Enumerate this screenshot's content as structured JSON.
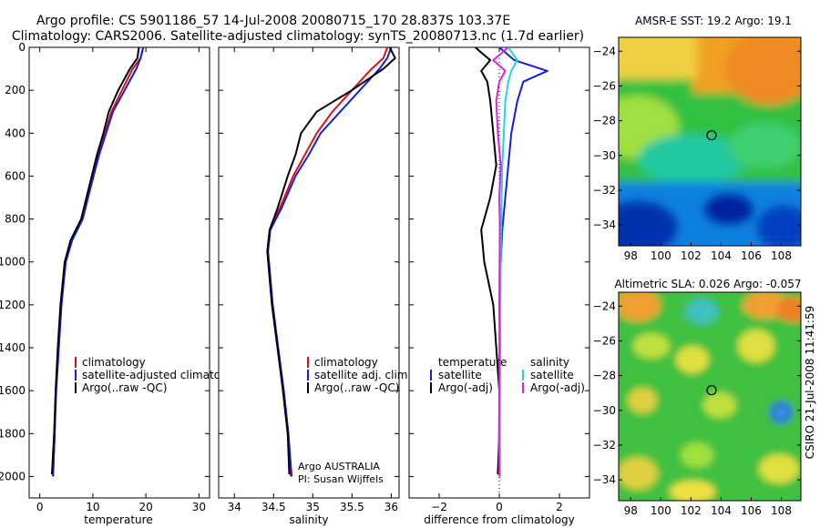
{
  "header": {
    "line1": "Argo profile: CS 5901186_57 14-Jul-2008 20080715_170 28.837S 103.37E",
    "line2": "Climatology: CARS2006. Satellite-adjusted climatology: synTS_20080713.nc (1.7d earlier)"
  },
  "side_note": "CSIRO 21-Jul-2008 11:41:59",
  "chart_data": [
    {
      "id": "temperature",
      "type": "line",
      "xlabel": "temperature",
      "xlim": [
        -2,
        32
      ],
      "xticks": [
        0,
        10,
        20,
        30
      ],
      "ylim": [
        0,
        2100
      ],
      "yticks": [
        0,
        200,
        400,
        600,
        800,
        1000,
        1200,
        1400,
        1600,
        1800,
        2000
      ],
      "y_reversed": true,
      "legend": [
        "climatology",
        "satellite-adjusted climatology",
        "Argo(..raw -QC)"
      ],
      "series": [
        {
          "name": "climatology",
          "color": "#e01010",
          "x": [
            19.5,
            19.0,
            17.5,
            15.5,
            13.5,
            12.3,
            11.0,
            9.5,
            8.0,
            6.0,
            4.8,
            4.0,
            3.5,
            3.0,
            2.8,
            2.5
          ],
          "y": [
            0,
            50,
            100,
            200,
            300,
            400,
            500,
            650,
            800,
            900,
            1000,
            1200,
            1400,
            1600,
            1800,
            2000
          ]
        },
        {
          "name": "satellite-adjusted climatology",
          "color": "#1020e0",
          "x": [
            19.5,
            19.0,
            18.2,
            16.0,
            13.8,
            12.5,
            11.2,
            9.6,
            8.1,
            6.1,
            4.9,
            4.1,
            3.6,
            3.1,
            2.8,
            2.5
          ],
          "y": [
            0,
            50,
            100,
            200,
            300,
            400,
            500,
            650,
            800,
            900,
            1000,
            1200,
            1400,
            1600,
            1800,
            2000
          ]
        },
        {
          "name": "Argo(..raw -QC)",
          "color": "#000000",
          "x": [
            18.7,
            18.4,
            17.0,
            14.8,
            13.0,
            12.0,
            10.8,
            9.3,
            7.8,
            5.8,
            4.7,
            3.9,
            3.4,
            3.0,
            2.7,
            2.3
          ],
          "y": [
            0,
            50,
            100,
            200,
            300,
            400,
            500,
            650,
            800,
            900,
            1000,
            1200,
            1400,
            1600,
            1800,
            1990
          ]
        }
      ]
    },
    {
      "id": "salinity",
      "type": "line",
      "xlabel": "salinity",
      "xlim": [
        33.8,
        36.1
      ],
      "xticks": [
        34,
        34.5,
        35,
        35.5,
        36
      ],
      "ylim": [
        0,
        2100
      ],
      "y_reversed": true,
      "legend": [
        "climatology",
        "satellite adj. clim.",
        "Argo(..raw -QC)"
      ],
      "annotation": [
        "Argo AUSTRALIA",
        "PI: Susan Wijffels"
      ],
      "series": [
        {
          "name": "climatology",
          "color": "#e01010",
          "x": [
            35.95,
            35.9,
            35.75,
            35.5,
            35.25,
            35.05,
            34.9,
            34.75,
            34.58,
            34.45,
            34.42,
            34.48,
            34.55,
            34.62,
            34.68,
            34.72
          ],
          "y": [
            0,
            50,
            100,
            200,
            300,
            400,
            500,
            600,
            750,
            850,
            950,
            1200,
            1400,
            1600,
            1800,
            2000
          ]
        },
        {
          "name": "satellite adj. clim.",
          "color": "#1020e0",
          "x": [
            36.0,
            35.95,
            35.85,
            35.6,
            35.35,
            35.1,
            34.95,
            34.78,
            34.6,
            34.46,
            34.43,
            34.49,
            34.56,
            34.63,
            34.69,
            34.73
          ],
          "y": [
            0,
            50,
            100,
            200,
            300,
            400,
            500,
            600,
            750,
            850,
            950,
            1200,
            1400,
            1600,
            1800,
            2000
          ]
        },
        {
          "name": "Argo(..raw -QC)",
          "color": "#000000",
          "x": [
            35.98,
            36.05,
            35.9,
            35.5,
            35.05,
            34.85,
            34.78,
            34.68,
            34.55,
            34.45,
            34.42,
            34.48,
            34.55,
            34.62,
            34.68,
            34.7
          ],
          "y": [
            0,
            50,
            100,
            200,
            300,
            400,
            500,
            600,
            750,
            850,
            950,
            1200,
            1400,
            1600,
            1800,
            1990
          ]
        }
      ]
    },
    {
      "id": "difference",
      "type": "line",
      "xlabel": "difference from climatology",
      "xlim": [
        -3,
        3
      ],
      "xticks": [
        -2,
        0,
        2
      ],
      "ylim": [
        0,
        2100
      ],
      "y_reversed": true,
      "legend_temperature": {
        "title": "temperature",
        "entries": [
          "satellite",
          "Argo(-adj)"
        ]
      },
      "legend_salinity": {
        "title": "salinity",
        "entries": [
          "satellite",
          "Argo(-adj)"
        ]
      },
      "series": [
        {
          "name": "temperature satellite",
          "color": "#1020e0",
          "x": [
            0.0,
            0.5,
            1.6,
            0.8,
            0.6,
            0.4,
            0.3,
            0.2,
            0.1,
            0.05,
            0.02,
            0.01,
            0.0,
            0.0,
            0.0
          ],
          "y": [
            0,
            60,
            110,
            160,
            250,
            400,
            550,
            700,
            850,
            1000,
            1200,
            1400,
            1600,
            1800,
            2000
          ]
        },
        {
          "name": "temperature Argo(-adj)",
          "color": "#000000",
          "x": [
            -0.8,
            -0.3,
            -0.6,
            -0.4,
            -0.3,
            -0.2,
            -0.1,
            -0.3,
            -0.6,
            -0.5,
            -0.2,
            -0.1,
            0.0,
            0.0,
            -0.05
          ],
          "y": [
            0,
            60,
            110,
            160,
            250,
            400,
            550,
            700,
            850,
            1000,
            1200,
            1400,
            1600,
            1800,
            1990
          ]
        },
        {
          "name": "salinity satellite",
          "color": "#20d8d8",
          "x": [
            0.3,
            0.6,
            0.4,
            0.3,
            0.2,
            0.15,
            0.1,
            0.08,
            0.06,
            0.05,
            0.04,
            0.03,
            0.02,
            0.02,
            0.02
          ],
          "y": [
            0,
            60,
            110,
            160,
            250,
            400,
            550,
            700,
            850,
            1000,
            1200,
            1400,
            1600,
            1800,
            2000
          ]
        },
        {
          "name": "salinity Argo(-adj)",
          "color": "#e020e0",
          "x": [
            0.3,
            -0.2,
            0.2,
            0.0,
            -0.1,
            -0.05,
            0.05,
            0.0,
            0.02,
            0.01,
            0.0,
            0.01,
            0.0,
            -0.01,
            0.0
          ],
          "y": [
            0,
            60,
            110,
            160,
            250,
            400,
            550,
            700,
            850,
            1000,
            1200,
            1400,
            1600,
            1800,
            2000
          ]
        }
      ]
    },
    {
      "id": "amsr_sst_map",
      "type": "heatmap",
      "title": "AMSR-E SST: 19.2 Argo: 19.1",
      "xticks": [
        98,
        100,
        102,
        104,
        106,
        108
      ],
      "yticks": [
        -24,
        -26,
        -28,
        -30,
        -32,
        -34
      ],
      "xlim": [
        97.2,
        109.3
      ],
      "ylim": [
        -35.2,
        -23.2
      ],
      "marker": {
        "lon": 103.37,
        "lat": -28.837
      }
    },
    {
      "id": "altimetric_sla_map",
      "type": "heatmap",
      "title": "Altimetric SLA: 0.026 Argo: -0.057",
      "xticks": [
        98,
        100,
        102,
        104,
        106,
        108
      ],
      "yticks": [
        -24,
        -26,
        -28,
        -30,
        -32,
        -34
      ],
      "xlim": [
        97.2,
        109.3
      ],
      "ylim": [
        -35.2,
        -23.2
      ],
      "marker": {
        "lon": 103.37,
        "lat": -28.837
      }
    }
  ]
}
